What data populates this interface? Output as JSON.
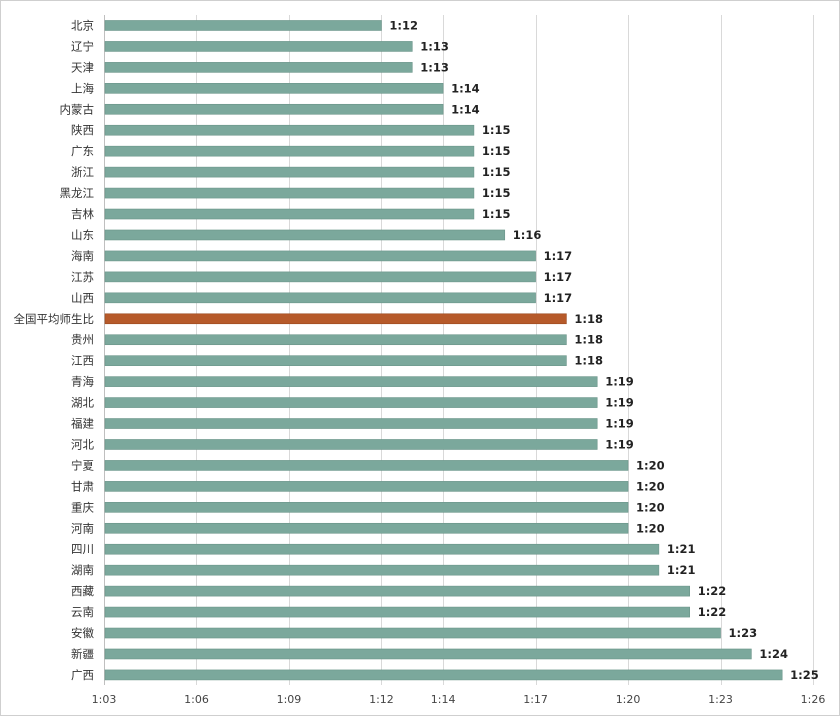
{
  "chart_data": {
    "type": "bar",
    "orientation": "horizontal",
    "categories": [
      "北京",
      "辽宁",
      "天津",
      "上海",
      "内蒙古",
      "陕西",
      "广东",
      "浙江",
      "黑龙江",
      "吉林",
      "山东",
      "海南",
      "江苏",
      "山西",
      "全国平均师生比",
      "贵州",
      "江西",
      "青海",
      "湖北",
      "福建",
      "河北",
      "宁夏",
      "甘肃",
      "重庆",
      "河南",
      "四川",
      "湖南",
      "西藏",
      "云南",
      "安徽",
      "新疆",
      "广西"
    ],
    "values": [
      12,
      13,
      13,
      14,
      14,
      15,
      15,
      15,
      15,
      15,
      16,
      17,
      17,
      17,
      18,
      18,
      18,
      19,
      19,
      19,
      19,
      20,
      20,
      20,
      20,
      21,
      21,
      22,
      22,
      23,
      24,
      25
    ],
    "value_labels": [
      "1:12",
      "1:13",
      "1:13",
      "1:14",
      "1:14",
      "1:15",
      "1:15",
      "1:15",
      "1:15",
      "1:15",
      "1:16",
      "1:17",
      "1:17",
      "1:17",
      "1:18",
      "1:18",
      "1:18",
      "1:19",
      "1:19",
      "1:19",
      "1:19",
      "1:20",
      "1:20",
      "1:20",
      "1:20",
      "1:21",
      "1:21",
      "1:22",
      "1:22",
      "1:23",
      "1:24",
      "1:25"
    ],
    "highlight_category": "全国平均师生比",
    "xlim": [
      3,
      26
    ],
    "x_ticks": [
      3,
      6,
      9,
      12,
      14,
      17,
      20,
      23,
      26
    ],
    "x_tick_labels": [
      "1:03",
      "1:06",
      "1:09",
      "1:12",
      "1:14",
      "1:17",
      "1:20",
      "1:23",
      "1:26"
    ],
    "title": "",
    "xlabel": "",
    "ylabel": "",
    "grid": true,
    "colors": {
      "bar": "#7ba89c",
      "highlight": "#b65a2a",
      "grid": "#d9d9d9",
      "text": "#333333"
    }
  }
}
